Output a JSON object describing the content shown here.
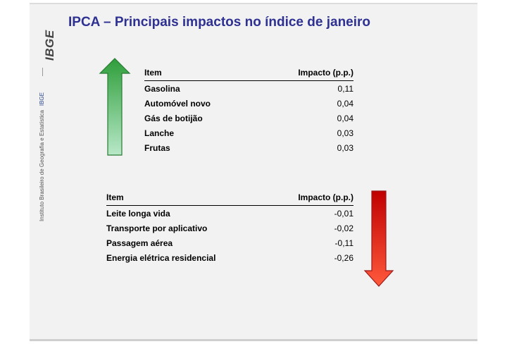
{
  "sidebar": {
    "logo_text": "IBGE",
    "institute_text": "Instituto Brasileiro de Geografia e Estatística",
    "institute_tag": "IBGE"
  },
  "title": "IPCA – Principais impactos no índice de janeiro",
  "positive_table": {
    "header_item": "Item",
    "header_impact": "Impacto (p.p.)",
    "rows": [
      {
        "item": "Gasolina",
        "impact": "0,11"
      },
      {
        "item": "Automóvel novo",
        "impact": "0,04"
      },
      {
        "item": "Gás de botijão",
        "impact": "0,04"
      },
      {
        "item": "Lanche",
        "impact": "0,03"
      },
      {
        "item": "Frutas",
        "impact": "0,03"
      }
    ]
  },
  "negative_table": {
    "header_item": "Item",
    "header_impact": "Impacto (p.p.)",
    "rows": [
      {
        "item": "Leite longa vida",
        "impact": "-0,01"
      },
      {
        "item": "Transporte por aplicativo",
        "impact": "-0,02"
      },
      {
        "item": "Passagem aérea",
        "impact": "-0,11"
      },
      {
        "item": "Energia elétrica residencial",
        "impact": "-0,26"
      }
    ]
  },
  "colors": {
    "title": "#2e3192",
    "up_arrow_top": "#2e9e3a",
    "up_arrow_bottom": "#b8e8c8",
    "down_arrow_top": "#c00000",
    "down_arrow_bottom": "#ff5a3c"
  },
  "icons": {
    "up_arrow": "up-arrow-icon",
    "down_arrow": "down-arrow-icon"
  }
}
